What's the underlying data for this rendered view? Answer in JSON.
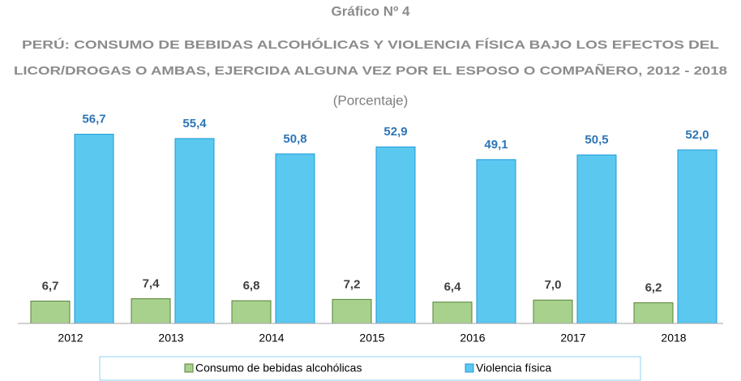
{
  "chart_data": {
    "type": "bar",
    "title": "Gráfico Nº 4",
    "subtitle": [
      "PERÚ: CONSUMO DE BEBIDAS ALCOHÓLICAS Y VIOLENCIA FÍSICA BAJO LOS EFECTOS DEL",
      "LICOR/DROGAS O AMBAS, EJERCIDA ALGUNA VEZ POR EL ESPOSO O COMPAÑERO, 2012 - 2018"
    ],
    "unit": "(Porcentaje)",
    "categories": [
      "2012",
      "2013",
      "2014",
      "2015",
      "2016",
      "2017",
      "2018"
    ],
    "series": [
      {
        "name": "Consumo de bebidas alcohólicas",
        "color": "#a9d18e",
        "values": [
          6.7,
          7.4,
          6.8,
          7.2,
          6.4,
          7.0,
          6.2
        ],
        "value_labels": [
          "6,7",
          "7,4",
          "6,8",
          "7,2",
          "6,4",
          "7,0",
          "6,2"
        ]
      },
      {
        "name": "Violencia física",
        "color": "#5bc8f0",
        "values": [
          56.7,
          55.4,
          50.8,
          52.9,
          49.1,
          50.5,
          52.0
        ],
        "value_labels": [
          "56,7",
          "55,4",
          "50,8",
          "52,9",
          "49,1",
          "50,5",
          "52,0"
        ]
      }
    ],
    "ylim": [
      0,
      60
    ]
  }
}
